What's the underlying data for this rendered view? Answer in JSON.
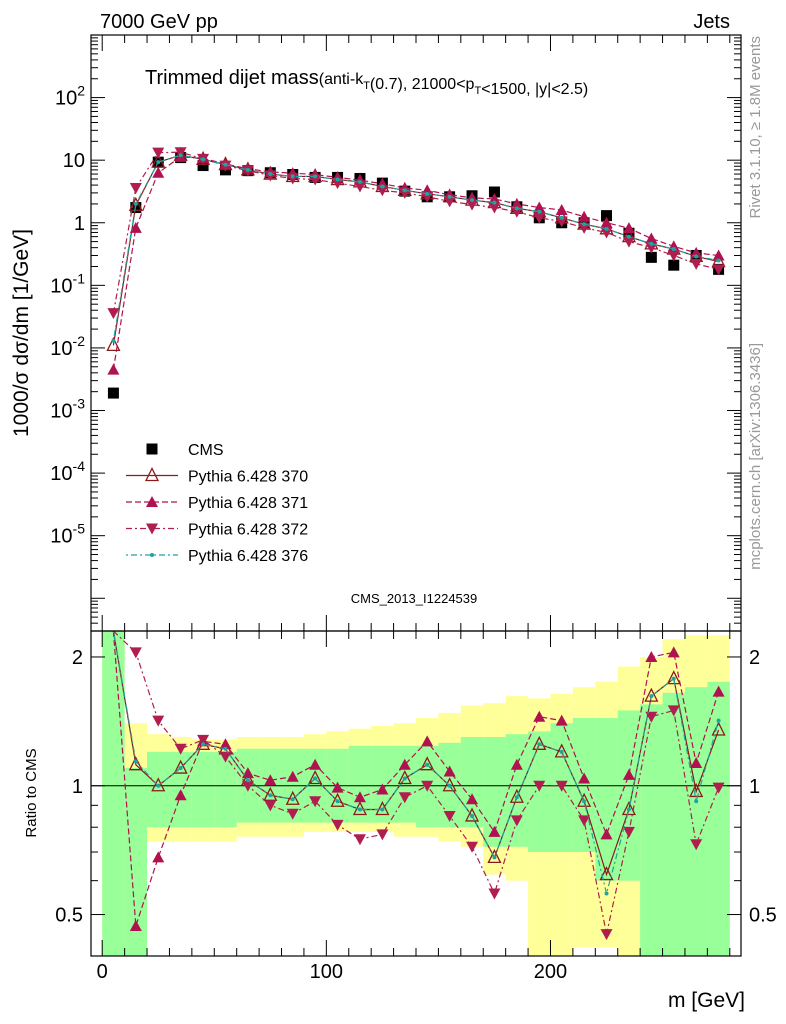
{
  "header": {
    "left": "7000 GeV pp",
    "right": "Jets"
  },
  "side_labels": {
    "rivet": "Rivet 3.1.10, ≥ 1.8M events",
    "mcplots": "mcplots.cern.ch [arXiv:1306.3436]"
  },
  "main": {
    "title_main": "Trimmed dijet mass",
    "title_sub": "(anti-k_T(0.7), 21000<p_T<1500, |y|<2.5)",
    "ylabel": "1000/σ dσ/dm [1/GeV]",
    "watermark": "CMS_2013_I1224539",
    "yticks": [
      "10^-5",
      "10^-4",
      "10^-3",
      "10^-2",
      "10^-1",
      "1",
      "10",
      "10^2"
    ]
  },
  "ratio": {
    "ylabel": "Ratio to CMS",
    "yticks": [
      "0.5",
      "1",
      "2"
    ]
  },
  "xaxis": {
    "label": "m [GeV]",
    "ticks": [
      "0",
      "100",
      "200"
    ]
  },
  "colors": {
    "data": "#000000",
    "p370": "#8b1a1a",
    "p371": "#b0124f",
    "p372": "#b01e50",
    "p376": "#1fa3a3",
    "band_inner": "#99ff99",
    "band_outer": "#ffff99"
  },
  "legend": [
    {
      "label": "CMS"
    },
    {
      "label": "Pythia 6.428 370"
    },
    {
      "label": "Pythia 6.428 371"
    },
    {
      "label": "Pythia 6.428 372"
    },
    {
      "label": "Pythia 6.428 376"
    }
  ],
  "chart_data": {
    "type": "scatter",
    "yscale_main": "log",
    "xlim": [
      -5,
      285
    ],
    "ylim_main": [
      3e-07,
      1000
    ],
    "ylim_ratio": [
      0.4,
      2.3
    ],
    "x": [
      5,
      15,
      25,
      35,
      45,
      55,
      65,
      75,
      85,
      95,
      105,
      115,
      125,
      135,
      145,
      155,
      165,
      175,
      185,
      195,
      205,
      215,
      225,
      235,
      245,
      255,
      265,
      275
    ],
    "bin_edges": [
      0,
      10,
      20,
      30,
      40,
      50,
      60,
      70,
      80,
      90,
      100,
      110,
      120,
      130,
      140,
      150,
      160,
      170,
      180,
      190,
      200,
      210,
      220,
      230,
      240,
      250,
      260,
      270,
      280
    ],
    "series": [
      {
        "name": "CMS",
        "key": "data",
        "marker": "square",
        "values": [
          0.0019,
          1.75,
          9.3,
          11.0,
          8.2,
          7.0,
          6.8,
          6.3,
          5.9,
          5.3,
          5.3,
          5.1,
          4.3,
          3.2,
          2.6,
          2.6,
          2.7,
          3.1,
          1.8,
          1.2,
          1.0,
          1.0,
          1.3,
          0.68,
          0.28,
          0.21,
          0.3,
          0.18
        ]
      },
      {
        "name": "Pythia 6.428 370",
        "key": "p370",
        "marker": "triangle-open",
        "values": [
          0.011,
          1.9,
          9.3,
          12.0,
          10.3,
          8.5,
          7.0,
          6.0,
          5.5,
          5.5,
          4.9,
          4.5,
          3.8,
          3.3,
          2.9,
          2.6,
          2.3,
          2.1,
          1.7,
          1.5,
          1.2,
          0.95,
          0.8,
          0.6,
          0.46,
          0.38,
          0.29,
          0.24
        ]
      },
      {
        "name": "Pythia 6.428 371",
        "key": "p371",
        "marker": "triangle-up",
        "values": [
          0.0045,
          0.83,
          6.3,
          11.3,
          10.7,
          8.7,
          7.3,
          6.5,
          6.2,
          5.9,
          5.3,
          4.8,
          4.2,
          3.6,
          3.3,
          2.8,
          2.5,
          2.4,
          2.0,
          1.75,
          1.6,
          1.25,
          1.0,
          0.82,
          0.56,
          0.42,
          0.33,
          0.3
        ]
      },
      {
        "name": "Pythia 6.428 372",
        "key": "p372",
        "marker": "triangle-down",
        "values": [
          0.036,
          3.6,
          13.2,
          13.4,
          10.5,
          8.2,
          6.8,
          5.7,
          5.1,
          4.9,
          4.3,
          3.8,
          3.3,
          3.0,
          2.6,
          2.2,
          1.95,
          1.75,
          1.5,
          1.2,
          1.05,
          0.83,
          0.7,
          0.5,
          0.4,
          0.3,
          0.22,
          0.18
        ]
      },
      {
        "name": "Pythia 6.428 376",
        "key": "p376",
        "marker": "dot",
        "values": [
          0.013,
          2.0,
          9.3,
          12.0,
          10.3,
          8.5,
          7.0,
          6.0,
          5.5,
          5.5,
          4.9,
          4.5,
          3.8,
          3.3,
          2.9,
          2.6,
          2.3,
          2.1,
          1.7,
          1.5,
          1.2,
          0.95,
          0.8,
          0.6,
          0.46,
          0.38,
          0.29,
          0.25
        ]
      }
    ],
    "ratio_series": [
      {
        "key": "p370",
        "values": [
          5.8,
          1.12,
          1.0,
          1.1,
          1.25,
          1.22,
          1.03,
          0.95,
          0.93,
          1.04,
          0.92,
          0.88,
          0.88,
          1.04,
          1.12,
          1.0,
          0.85,
          0.68,
          0.94,
          1.25,
          1.2,
          0.92,
          0.62,
          0.88,
          1.62,
          1.78,
          0.97,
          1.35
        ]
      },
      {
        "key": "p371",
        "values": [
          2.4,
          0.47,
          0.68,
          0.95,
          1.27,
          1.25,
          1.07,
          1.03,
          1.05,
          1.12,
          0.99,
          0.94,
          0.98,
          1.12,
          1.27,
          1.08,
          0.93,
          0.78,
          1.12,
          1.45,
          1.42,
          1.04,
          0.77,
          1.06,
          2.0,
          2.05,
          1.13,
          1.66
        ]
      },
      {
        "key": "p372",
        "values": [
          19.0,
          2.05,
          1.42,
          1.22,
          1.28,
          1.17,
          1.0,
          0.9,
          0.86,
          0.92,
          0.81,
          0.75,
          0.77,
          0.94,
          1.0,
          0.85,
          0.72,
          0.56,
          0.83,
          1.0,
          1.0,
          0.83,
          0.45,
          0.78,
          1.45,
          1.5,
          0.73,
          0.99
        ]
      },
      {
        "key": "p376",
        "values": [
          6.8,
          1.14,
          1.0,
          1.1,
          1.25,
          1.22,
          1.03,
          0.95,
          0.93,
          1.04,
          0.92,
          0.88,
          0.88,
          1.04,
          1.12,
          1.0,
          0.85,
          0.68,
          0.94,
          1.25,
          1.2,
          0.92,
          0.56,
          0.88,
          1.62,
          1.78,
          0.92,
          1.42
        ]
      }
    ],
    "band_inner": [
      [
        0.2,
        5.0
      ],
      [
        0.4,
        1.1
      ],
      [
        0.8,
        1.2
      ],
      [
        0.8,
        1.2
      ],
      [
        0.8,
        1.2
      ],
      [
        0.8,
        1.2
      ],
      [
        0.82,
        1.22
      ],
      [
        0.82,
        1.22
      ],
      [
        0.82,
        1.22
      ],
      [
        0.82,
        1.22
      ],
      [
        0.82,
        1.22
      ],
      [
        0.82,
        1.24
      ],
      [
        0.82,
        1.24
      ],
      [
        0.82,
        1.24
      ],
      [
        0.8,
        1.24
      ],
      [
        0.8,
        1.26
      ],
      [
        0.8,
        1.3
      ],
      [
        0.72,
        1.3
      ],
      [
        0.72,
        1.32
      ],
      [
        0.7,
        1.34
      ],
      [
        0.7,
        1.4
      ],
      [
        0.7,
        1.44
      ],
      [
        0.6,
        1.44
      ],
      [
        0.6,
        1.5
      ],
      [
        0.4,
        1.55
      ],
      [
        0.38,
        1.65
      ],
      [
        0.38,
        1.7
      ],
      [
        0.38,
        1.75
      ]
    ],
    "band_outer": [
      [
        0.2,
        5.0
      ],
      [
        0.4,
        1.4
      ],
      [
        0.74,
        1.32
      ],
      [
        0.74,
        1.3
      ],
      [
        0.74,
        1.28
      ],
      [
        0.74,
        1.28
      ],
      [
        0.76,
        1.3
      ],
      [
        0.76,
        1.3
      ],
      [
        0.76,
        1.3
      ],
      [
        0.78,
        1.32
      ],
      [
        0.78,
        1.34
      ],
      [
        0.78,
        1.36
      ],
      [
        0.78,
        1.38
      ],
      [
        0.76,
        1.4
      ],
      [
        0.76,
        1.44
      ],
      [
        0.74,
        1.48
      ],
      [
        0.72,
        1.54
      ],
      [
        0.62,
        1.56
      ],
      [
        0.6,
        1.62
      ],
      [
        0.38,
        1.6
      ],
      [
        0.4,
        1.64
      ],
      [
        0.42,
        1.7
      ],
      [
        0.42,
        1.75
      ],
      [
        0.38,
        1.9
      ],
      [
        0.35,
        2.0
      ],
      [
        0.35,
        2.2
      ],
      [
        0.35,
        2.25
      ],
      [
        0.35,
        2.25
      ]
    ]
  }
}
